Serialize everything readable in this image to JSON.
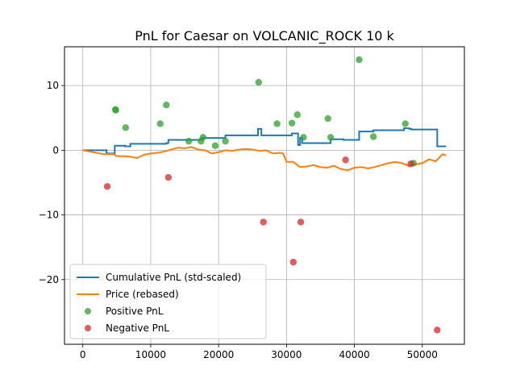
{
  "chart_data": {
    "type": "line",
    "title": "PnL for Caesar on VOLCANIC_ROCK 10 k",
    "xlabel": "",
    "ylabel": "",
    "xlim": [
      -2700,
      56200
    ],
    "ylim": [
      -30,
      16
    ],
    "x_ticks": [
      0,
      10000,
      20000,
      30000,
      40000,
      50000
    ],
    "x_tick_labels": [
      "0",
      "10000",
      "20000",
      "30000",
      "40000",
      "50000"
    ],
    "y_ticks": [
      -20,
      -10,
      0,
      10
    ],
    "y_tick_labels": [
      "−20",
      "−10",
      "0",
      "10"
    ],
    "grid": true,
    "legend_position": "lower-left",
    "series": [
      {
        "name": "Cumulative PnL (std-scaled)",
        "kind": "step",
        "color": "#1f77b4",
        "x": [
          0,
          3500,
          4700,
          6200,
          7000,
          12300,
          12600,
          15500,
          17300,
          17600,
          19500,
          21000,
          25800,
          26300,
          28600,
          30800,
          31700,
          32000,
          32300,
          36200,
          36500,
          38400,
          40700,
          42800,
          47300,
          48100,
          48400,
          52200,
          53500
        ],
        "y": [
          0,
          -0.5,
          0.7,
          0.6,
          1.0,
          1.1,
          1.6,
          1.6,
          1.7,
          1.9,
          1.9,
          2.3,
          3.3,
          2.3,
          2.3,
          2.6,
          0.8,
          1.9,
          1.1,
          1.1,
          1.7,
          1.6,
          2.9,
          3.1,
          3.4,
          3.3,
          3.2,
          0.6,
          0.6
        ]
      },
      {
        "name": "Price (rebased)",
        "kind": "line",
        "color": "#ff7f0e",
        "x": [
          0,
          1500,
          3000,
          4500,
          5000,
          6000,
          7000,
          8000,
          9000,
          10000,
          11000,
          12000,
          13000,
          14000,
          15000,
          16000,
          17000,
          18000,
          19000,
          20000,
          21000,
          22000,
          23000,
          24000,
          25000,
          26000,
          27000,
          28000,
          29000,
          29500,
          30000,
          31000,
          32000,
          33000,
          34000,
          35000,
          36000,
          37000,
          38000,
          39000,
          40000,
          41000,
          42000,
          43000,
          44000,
          45000,
          46000,
          47000,
          48000,
          49000,
          50000,
          51000,
          52000,
          53000,
          53500
        ],
        "y": [
          0,
          -0.3,
          -0.6,
          -0.6,
          -0.9,
          -0.9,
          -1.0,
          -1.2,
          -0.7,
          -0.5,
          -0.4,
          -0.2,
          0.1,
          0.4,
          0.3,
          0.5,
          0.1,
          0.0,
          -0.5,
          -0.3,
          0.0,
          -0.1,
          0.1,
          0.2,
          0.1,
          -0.1,
          0.0,
          -0.5,
          -0.4,
          -0.5,
          -1.8,
          -1.8,
          -2.6,
          -2.5,
          -2.3,
          -2.6,
          -2.7,
          -2.4,
          -2.9,
          -3.1,
          -2.7,
          -2.6,
          -2.8,
          -2.6,
          -2.3,
          -2.0,
          -1.8,
          -2.0,
          -2.4,
          -2.2,
          -2.0,
          -1.4,
          -1.7,
          -0.6,
          -0.8
        ]
      }
    ],
    "scatter": [
      {
        "name": "Positive PnL",
        "color": "#2ca02c",
        "points": [
          [
            4800,
            6.3
          ],
          [
            4850,
            6.2
          ],
          [
            6300,
            3.5
          ],
          [
            11400,
            4.1
          ],
          [
            12300,
            7.0
          ],
          [
            15600,
            1.4
          ],
          [
            17400,
            1.4
          ],
          [
            17700,
            2.0
          ],
          [
            19500,
            0.7
          ],
          [
            21000,
            1.4
          ],
          [
            25900,
            10.5
          ],
          [
            28600,
            4.1
          ],
          [
            30800,
            4.2
          ],
          [
            31600,
            5.5
          ],
          [
            32500,
            2.0
          ],
          [
            36100,
            4.9
          ],
          [
            36500,
            2.0
          ],
          [
            40700,
            14.0
          ],
          [
            42800,
            2.1
          ],
          [
            47500,
            4.1
          ],
          [
            48700,
            -2.0
          ]
        ]
      },
      {
        "name": "Negative PnL",
        "color": "#d62728",
        "points": [
          [
            3600,
            -5.6
          ],
          [
            12600,
            -4.2
          ],
          [
            26600,
            -11.1
          ],
          [
            31000,
            -17.3
          ],
          [
            32100,
            -11.1
          ],
          [
            38700,
            -1.5
          ],
          [
            48300,
            -2.1
          ],
          [
            52200,
            -27.8
          ]
        ]
      }
    ]
  }
}
